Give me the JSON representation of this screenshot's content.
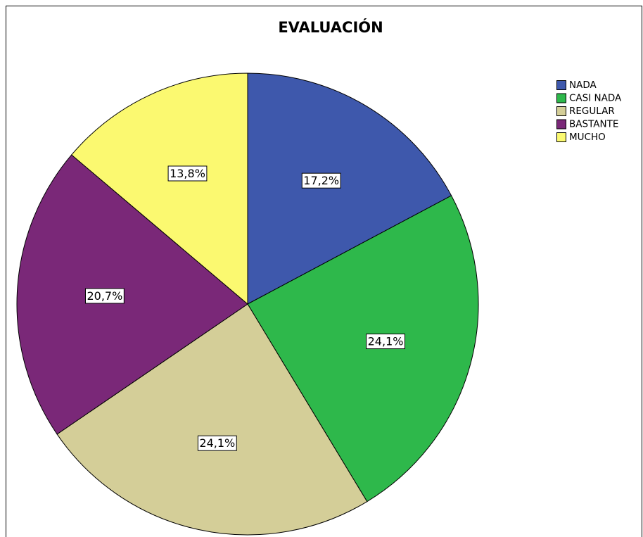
{
  "chart_data": {
    "type": "pie",
    "title": "EVALUACIÓN",
    "categories": [
      "NADA",
      "CASI NADA",
      "REGULAR",
      "BASTANTE",
      "MUCHO"
    ],
    "values": [
      17.2,
      24.1,
      24.1,
      20.7,
      13.8
    ],
    "value_labels": [
      "17,2%",
      "24,1%",
      "24,1%",
      "20,7%",
      "13,8%"
    ],
    "colors": [
      "#3e58ac",
      "#2eb84b",
      "#d4ce98",
      "#7a2878",
      "#fbf970"
    ],
    "legend": "right"
  }
}
